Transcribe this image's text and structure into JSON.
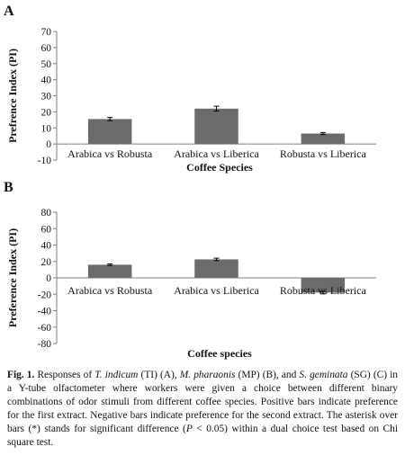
{
  "colors": {
    "bar": "#6b6b6b",
    "axis": "#7f7f7f",
    "text": "#111111"
  },
  "chart_data": [
    {
      "panel": "A",
      "type": "bar",
      "categories": [
        "Arabica vs Robusta",
        "Arabica vs Liberica",
        "Robusta vs Liberica"
      ],
      "values": [
        15.5,
        22.0,
        6.5
      ],
      "errors": [
        1.0,
        1.5,
        0.6
      ],
      "ylabel": "Prefrence Index (PI)",
      "xlabel": "Coffee Species",
      "ylim": [
        -10,
        70
      ],
      "yticks": [
        "70",
        "60",
        "50",
        "40",
        "30",
        "20",
        "10",
        "0",
        "-10"
      ],
      "grid": false
    },
    {
      "panel": "B",
      "type": "bar",
      "categories": [
        "Arabica vs Robusta",
        "Arabica vs Liberica",
        "Robusta vs Liberica"
      ],
      "values": [
        16.0,
        22.5,
        -18.0
      ],
      "errors": [
        1.0,
        1.5,
        1.5
      ],
      "ylabel": "Preference Index (PI)",
      "xlabel": "Coffee species",
      "ylim": [
        -80,
        80
      ],
      "yticks": [
        "80",
        "60",
        "40",
        "20",
        "0",
        "-20",
        "-40",
        "-60",
        "-80"
      ],
      "grid": false
    }
  ],
  "caption": {
    "fig_label": "Fig. 1.",
    "parts": [
      "Responses of ",
      "T. indicum",
      " (TI) (A), ",
      "M. pharaonis",
      " (MP) (B), and ",
      "S. geminata",
      " (SG) (C) in a Y-tube olfactometer where workers were given a choice between different binary combinations of odor stimuli from different coffee species. Positive bars indicate preference for the first extract. Negative bars indicate preference for the second extract. The asterisk over bars (*) stands for significant difference (",
      "P",
      " < 0.05) within a dual choice test based on Chi square test."
    ]
  }
}
